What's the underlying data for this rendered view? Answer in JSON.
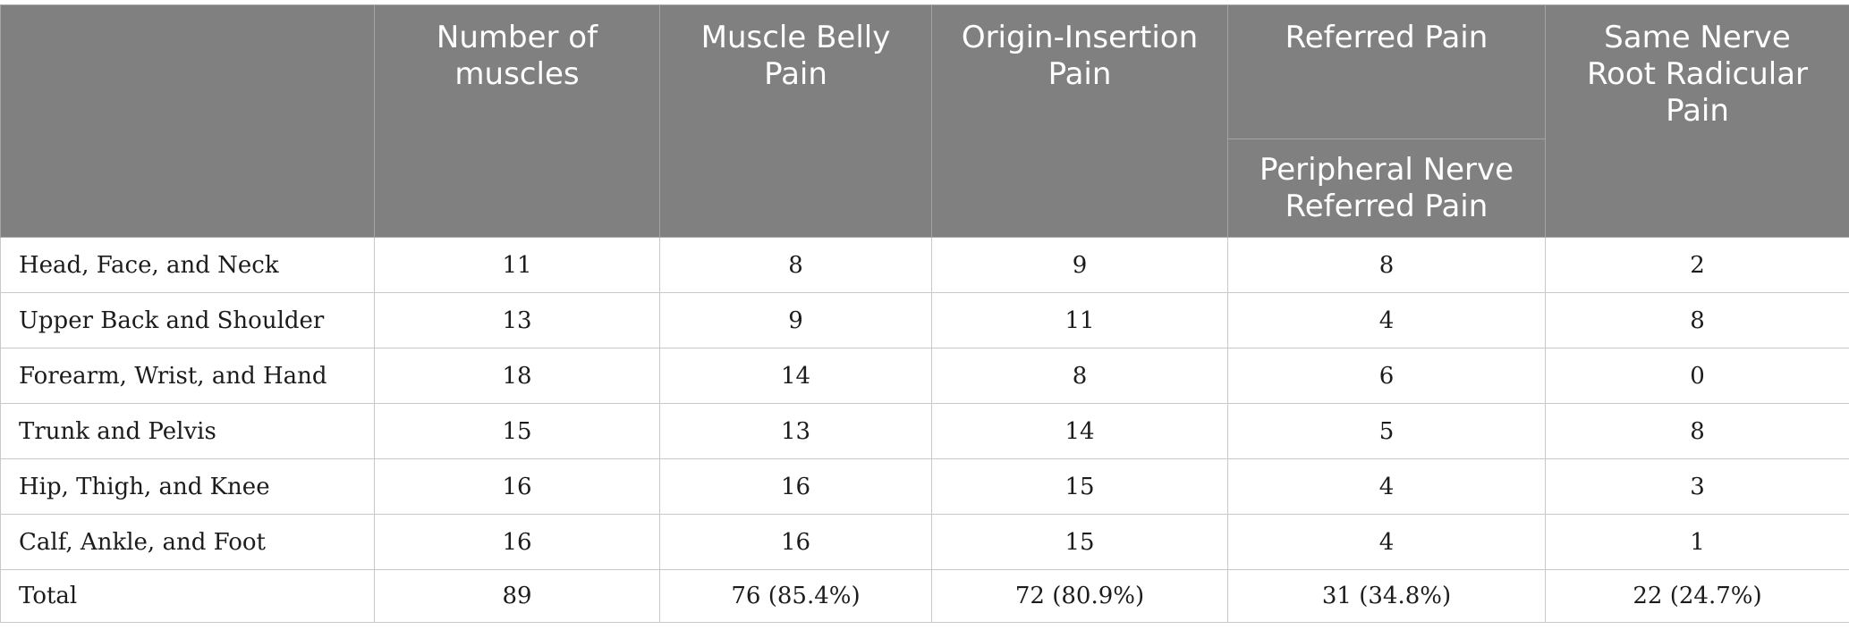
{
  "header": {
    "col0": "",
    "number_of_muscles": "Number of\nmuscles",
    "muscle_belly_pain": "Muscle Belly\nPain",
    "origin_insertion_pain": "Origin-Insertion\nPain",
    "referred_pain": "Referred Pain",
    "peripheral_nerve_referred_pain": "Peripheral Nerve\nReferred Pain",
    "same_nerve_root_radicular_pain": "Same Nerve\nRoot Radicular\nPain"
  },
  "rows": [
    {
      "region": "Head, Face, and Neck",
      "muscles": "11",
      "belly": "8",
      "origin": "9",
      "peripheral": "8",
      "radicular": "2"
    },
    {
      "region": "Upper Back and Shoulder",
      "muscles": "13",
      "belly": "9",
      "origin": "11",
      "peripheral": "4",
      "radicular": "8"
    },
    {
      "region": "Forearm, Wrist, and Hand",
      "muscles": "18",
      "belly": "14",
      "origin": "8",
      "peripheral": "6",
      "radicular": "0"
    },
    {
      "region": "Trunk and Pelvis",
      "muscles": "15",
      "belly": "13",
      "origin": "14",
      "peripheral": "5",
      "radicular": "8"
    },
    {
      "region": "Hip, Thigh, and Knee",
      "muscles": "16",
      "belly": "16",
      "origin": "15",
      "peripheral": "4",
      "radicular": "3"
    },
    {
      "region": "Calf, Ankle, and Foot",
      "muscles": "16",
      "belly": "16",
      "origin": "15",
      "peripheral": "4",
      "radicular": "1"
    },
    {
      "region": "Total",
      "muscles": "89",
      "belly": "76 (85.4%)",
      "origin": "72 (80.9%)",
      "peripheral": "31 (34.8%)",
      "radicular": "22 (24.7%)"
    }
  ]
}
